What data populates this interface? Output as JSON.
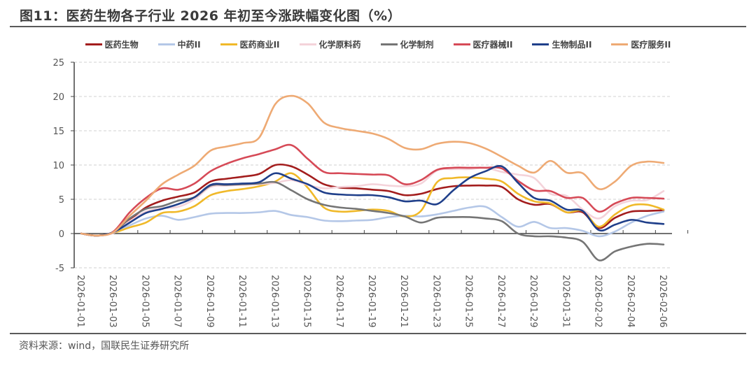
{
  "header": {
    "title": "图11：医药生物各子行业  2026 年初至今涨跌幅变化图（%）"
  },
  "footer": {
    "source": "资料来源：wind，国联民生证券研究所"
  },
  "chart_data": {
    "type": "line",
    "title": "图11：医药生物各子行业 2026 年初至今涨跌幅变化图（%）",
    "xlabel": "",
    "ylabel": "",
    "ylim": [
      -5,
      25
    ],
    "yticks": [
      "25",
      "20",
      "15",
      "10",
      "5",
      "0",
      "-5"
    ],
    "ytick_values": [
      25,
      20,
      15,
      10,
      5,
      0,
      -5
    ],
    "grid": true,
    "legend_position": "top-center",
    "x_tick_labels": [
      "2026-01-01",
      "2026-01-03",
      "2026-01-05",
      "2026-01-07",
      "2026-01-09",
      "2026-01-11",
      "2026-01-13",
      "2026-01-15",
      "2026-01-17",
      "2026-01-19",
      "2026-01-21",
      "2026-01-23",
      "2026-01-25",
      "2026-01-27",
      "2026-01-29",
      "2026-01-31",
      "2026-02-02",
      "2026-02-04",
      "2026-02-06"
    ],
    "x": [
      "01-01",
      "01-02",
      "01-03",
      "01-04",
      "01-05",
      "01-06",
      "01-07",
      "01-08",
      "01-09",
      "01-10",
      "01-11",
      "01-12",
      "01-13",
      "01-14",
      "01-15",
      "01-16",
      "01-17",
      "01-18",
      "01-19",
      "01-20",
      "01-21",
      "01-22",
      "01-23",
      "01-24",
      "01-25",
      "01-26",
      "01-27",
      "01-28",
      "01-29",
      "01-30",
      "01-31",
      "02-01",
      "02-02",
      "02-03",
      "02-04",
      "02-05",
      "02-06"
    ],
    "series": [
      {
        "name": "医药生物",
        "color": "#a31d1d",
        "values": [
          0,
          -0.3,
          0.2,
          2.0,
          3.8,
          4.8,
          5.4,
          6.0,
          7.6,
          8.0,
          8.3,
          8.7,
          10.0,
          9.8,
          8.6,
          7.2,
          6.7,
          6.6,
          6.4,
          6.2,
          5.6,
          5.8,
          6.5,
          6.9,
          7.0,
          7.0,
          6.8,
          5.0,
          4.2,
          4.3,
          3.1,
          3.1,
          0.8,
          2.3,
          3.2,
          3.3,
          3.4
        ]
      },
      {
        "name": "中药II",
        "color": "#b4c7e7",
        "values": [
          0,
          -0.3,
          0.1,
          1.2,
          2.2,
          2.6,
          2.0,
          2.4,
          2.9,
          3.0,
          3.0,
          3.1,
          3.3,
          2.7,
          2.4,
          1.9,
          1.8,
          1.9,
          2.0,
          2.4,
          2.6,
          2.5,
          2.8,
          3.3,
          3.8,
          3.9,
          2.4,
          1.0,
          1.7,
          0.8,
          0.8,
          0.4,
          -0.4,
          0.3,
          1.6,
          2.6,
          3.2
        ]
      },
      {
        "name": "医药商业II",
        "color": "#f0b929",
        "values": [
          0,
          -0.3,
          0.1,
          0.9,
          1.6,
          3.0,
          3.2,
          4.0,
          5.6,
          6.2,
          6.5,
          6.9,
          7.6,
          8.8,
          6.7,
          3.8,
          3.2,
          3.3,
          3.5,
          3.3,
          2.5,
          3.3,
          7.5,
          8.1,
          8.2,
          8.0,
          7.6,
          5.8,
          4.7,
          4.4,
          3.1,
          3.3,
          1.0,
          2.8,
          4.1,
          4.2,
          3.5
        ]
      },
      {
        "name": "化学原料药",
        "color": "#f4d3da",
        "values": [
          0,
          -0.3,
          0.1,
          1.8,
          3.2,
          3.7,
          3.9,
          5.0,
          6.8,
          7.0,
          7.1,
          7.2,
          7.4,
          7.8,
          7.1,
          6.6,
          6.8,
          6.9,
          7.2,
          7.0,
          6.9,
          7.3,
          9.2,
          9.4,
          9.4,
          9.6,
          9.0,
          8.6,
          8.1,
          5.8,
          5.5,
          3.5,
          2.2,
          4.0,
          4.8,
          4.9,
          6.2
        ]
      },
      {
        "name": "化学制剂",
        "color": "#757575",
        "values": [
          0,
          -0.3,
          0.2,
          2.2,
          3.6,
          4.0,
          4.8,
          5.3,
          7.0,
          7.1,
          7.2,
          7.3,
          7.5,
          6.3,
          5.0,
          4.2,
          3.8,
          3.6,
          3.3,
          3.0,
          2.5,
          1.6,
          2.3,
          2.4,
          2.4,
          2.2,
          1.8,
          0.0,
          -0.4,
          -0.4,
          -0.6,
          -1.2,
          -3.9,
          -2.6,
          -1.9,
          -1.5,
          -1.6
        ]
      },
      {
        "name": "医疗器械II",
        "color": "#d64a57",
        "values": [
          0,
          -0.3,
          0.3,
          3.1,
          5.2,
          6.6,
          6.4,
          7.3,
          9.1,
          10.2,
          11.0,
          11.6,
          12.3,
          12.9,
          10.9,
          9.0,
          8.8,
          8.7,
          8.6,
          8.5,
          7.2,
          7.8,
          9.3,
          9.6,
          9.6,
          9.6,
          9.5,
          7.7,
          6.3,
          6.2,
          5.2,
          5.2,
          3.2,
          4.4,
          5.2,
          5.2,
          5.1
        ]
      },
      {
        "name": "生物制品II",
        "color": "#1f3f8a",
        "values": [
          0,
          -0.3,
          0.2,
          1.6,
          3.0,
          3.6,
          4.3,
          5.3,
          7.1,
          7.2,
          7.3,
          7.5,
          8.8,
          8.0,
          7.2,
          6.0,
          5.7,
          5.6,
          5.6,
          5.3,
          4.7,
          4.8,
          4.3,
          6.3,
          8.1,
          9.1,
          9.8,
          7.4,
          5.2,
          4.8,
          3.5,
          3.3,
          0.5,
          1.3,
          2.0,
          1.6,
          1.4
        ]
      },
      {
        "name": "医疗服务II",
        "color": "#eeaa74",
        "values": [
          0,
          -0.3,
          0.2,
          2.6,
          4.8,
          7.2,
          8.6,
          9.9,
          12.1,
          12.7,
          13.2,
          14.0,
          18.9,
          20.1,
          19.0,
          16.2,
          15.4,
          15.0,
          14.6,
          13.8,
          12.5,
          12.3,
          13.1,
          13.4,
          13.2,
          12.4,
          11.2,
          9.9,
          8.9,
          10.6,
          8.9,
          8.8,
          6.5,
          7.6,
          9.9,
          10.5,
          10.3
        ]
      }
    ]
  }
}
